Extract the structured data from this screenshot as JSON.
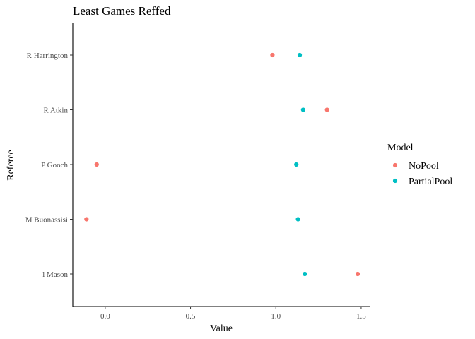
{
  "chart_data": {
    "type": "scatter",
    "title": "Least Games Reffed",
    "xlabel": "Value",
    "ylabel": "Referee",
    "xlim": [
      -0.19,
      1.55
    ],
    "x_ticks": [
      0.0,
      0.5,
      1.0,
      1.5
    ],
    "x_tick_labels": [
      "0.0",
      "0.5",
      "1.0",
      "1.5"
    ],
    "categories": [
      "R Harrington",
      "R Atkin",
      "P Gooch",
      "M Buonassisi",
      "l Mason"
    ],
    "grid": false,
    "legend": {
      "title": "Model",
      "position": "right"
    },
    "series": [
      {
        "name": "NoPool",
        "color": "#F8766D",
        "values": [
          0.98,
          1.3,
          -0.05,
          -0.11,
          1.48
        ]
      },
      {
        "name": "PartialPool",
        "color": "#00BFC4",
        "values": [
          1.14,
          1.16,
          1.12,
          1.13,
          1.17
        ]
      }
    ]
  }
}
